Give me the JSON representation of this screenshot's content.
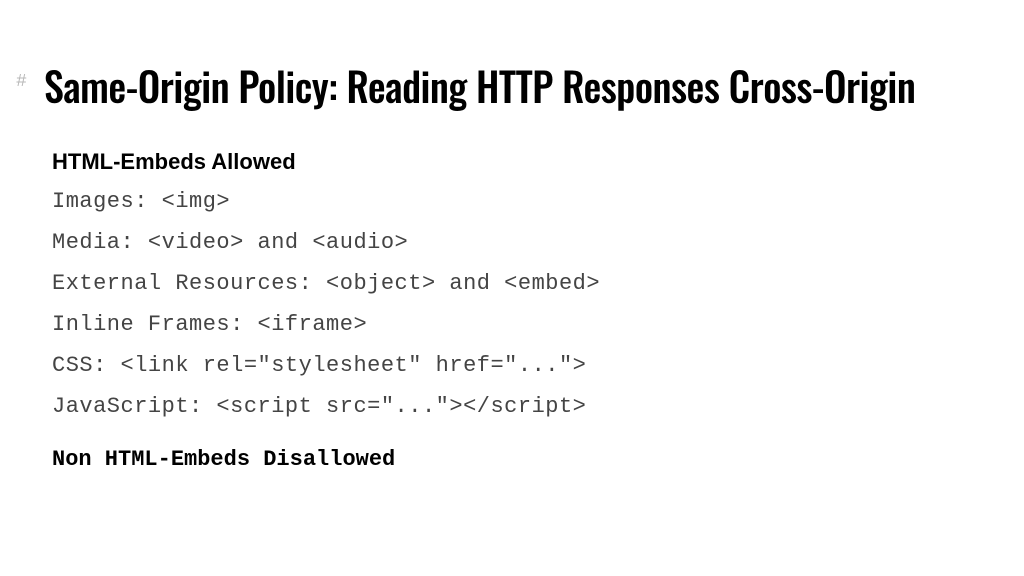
{
  "slide": {
    "hash_marker": "#",
    "title": "Same-Origin Policy: Reading HTTP Responses Cross-Origin",
    "section_allowed": "HTML-Embeds Allowed",
    "lines": [
      "Images: <img>",
      "Media: <video> and <audio>",
      "External Resources: <object> and <embed>",
      "Inline Frames: <iframe>",
      "CSS: <link rel=\"stylesheet\" href=\"...\">",
      "JavaScript: <script src=\"...\"></script>"
    ],
    "section_disallowed": "Non HTML-Embeds Disallowed"
  },
  "style": {
    "background_color": "#ffffff",
    "title_color": "#000000",
    "title_fontsize": 40,
    "hash_color": "#b8b8b8",
    "section_head_fontsize": 22,
    "code_color": "#444444",
    "code_fontsize": 22,
    "code_font": "Courier New"
  }
}
